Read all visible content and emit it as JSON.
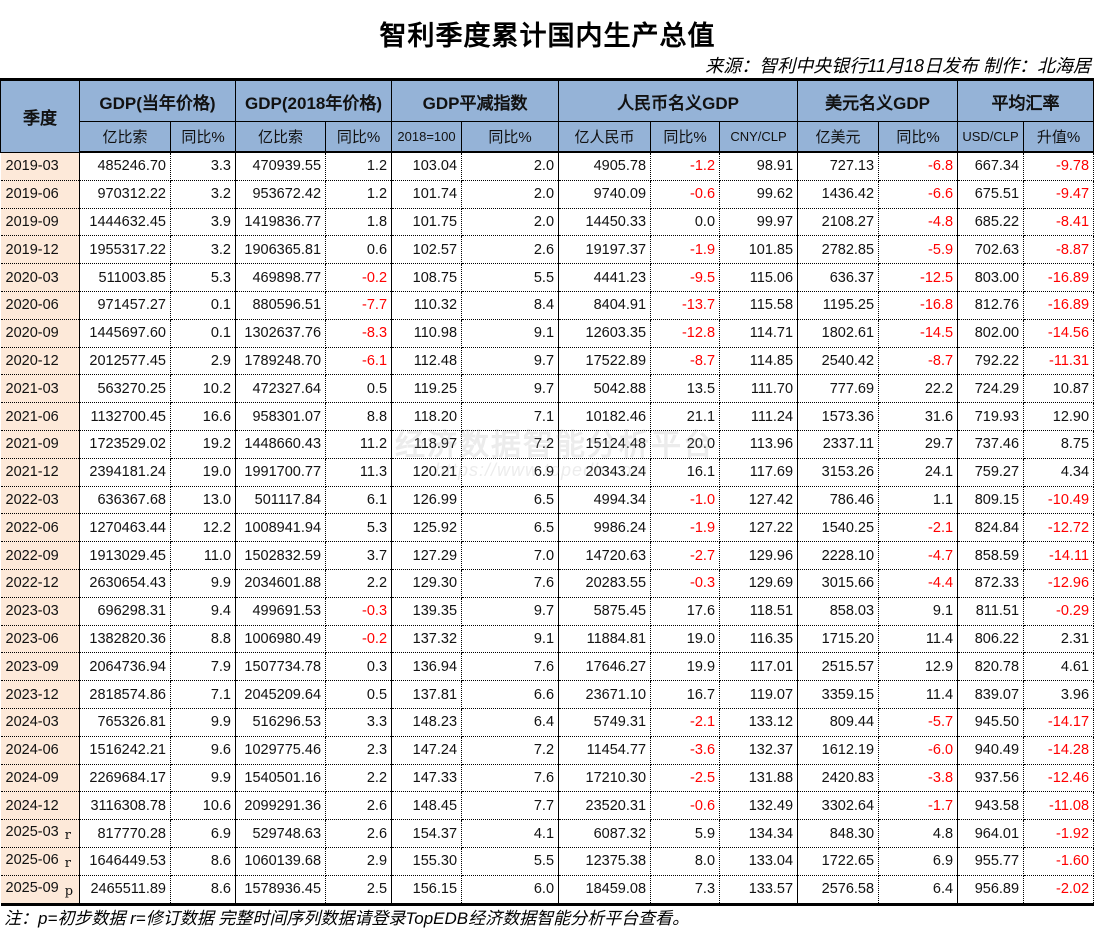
{
  "title": "智利季度累计国内生产总值",
  "source": "来源：智利中央银行11月18日发布 制作：北海居",
  "note": "注：p=初步数据 r=修订数据 完整时间序列数据请登录TopEDB经济数据智能分析平台查看。",
  "watermark": {
    "text": "经济数据智能分析平台",
    "url": "https://www.topedb.com"
  },
  "colors": {
    "header_bg": "#95b3d7",
    "quarter_bg": "#fde9d9",
    "negative": "#ff0000"
  },
  "header": {
    "quarter": "季度",
    "groups": [
      "GDP(当年价格)",
      "GDP(2018年价格)",
      "GDP平减指数",
      "人民币名义GDP",
      "美元名义GDP",
      "平均汇率"
    ],
    "subs": [
      "亿比索",
      "同比%",
      "亿比索",
      "同比%",
      "2018=100",
      "同比%",
      "亿人民币",
      "同比%",
      "CNY/CLP",
      "亿美元",
      "同比%",
      "USD/CLP",
      "升值%"
    ]
  },
  "rows": [
    {
      "q": "2019-03",
      "f": "",
      "v": [
        "485246.70",
        "3.3",
        "470939.55",
        "1.2",
        "103.04",
        "2.0",
        "4905.78",
        "-1.2",
        "98.91",
        "727.13",
        "-6.8",
        "667.34",
        "-9.78"
      ]
    },
    {
      "q": "2019-06",
      "f": "",
      "v": [
        "970312.22",
        "3.2",
        "953672.42",
        "1.2",
        "101.74",
        "2.0",
        "9740.09",
        "-0.6",
        "99.62",
        "1436.42",
        "-6.6",
        "675.51",
        "-9.47"
      ]
    },
    {
      "q": "2019-09",
      "f": "",
      "v": [
        "1444632.45",
        "3.9",
        "1419836.77",
        "1.8",
        "101.75",
        "2.0",
        "14450.33",
        "0.0",
        "99.97",
        "2108.27",
        "-4.8",
        "685.22",
        "-8.41"
      ]
    },
    {
      "q": "2019-12",
      "f": "",
      "v": [
        "1955317.22",
        "3.2",
        "1906365.81",
        "0.6",
        "102.57",
        "2.6",
        "19197.37",
        "-1.9",
        "101.85",
        "2782.85",
        "-5.9",
        "702.63",
        "-8.87"
      ]
    },
    {
      "q": "2020-03",
      "f": "",
      "v": [
        "511003.85",
        "5.3",
        "469898.77",
        "-0.2",
        "108.75",
        "5.5",
        "4441.23",
        "-9.5",
        "115.06",
        "636.37",
        "-12.5",
        "803.00",
        "-16.89"
      ]
    },
    {
      "q": "2020-06",
      "f": "",
      "v": [
        "971457.27",
        "0.1",
        "880596.51",
        "-7.7",
        "110.32",
        "8.4",
        "8404.91",
        "-13.7",
        "115.58",
        "1195.25",
        "-16.8",
        "812.76",
        "-16.89"
      ]
    },
    {
      "q": "2020-09",
      "f": "",
      "v": [
        "1445697.60",
        "0.1",
        "1302637.76",
        "-8.3",
        "110.98",
        "9.1",
        "12603.35",
        "-12.8",
        "114.71",
        "1802.61",
        "-14.5",
        "802.00",
        "-14.56"
      ]
    },
    {
      "q": "2020-12",
      "f": "",
      "v": [
        "2012577.45",
        "2.9",
        "1789248.70",
        "-6.1",
        "112.48",
        "9.7",
        "17522.89",
        "-8.7",
        "114.85",
        "2540.42",
        "-8.7",
        "792.22",
        "-11.31"
      ]
    },
    {
      "q": "2021-03",
      "f": "",
      "v": [
        "563270.25",
        "10.2",
        "472327.64",
        "0.5",
        "119.25",
        "9.7",
        "5042.88",
        "13.5",
        "111.70",
        "777.69",
        "22.2",
        "724.29",
        "10.87"
      ]
    },
    {
      "q": "2021-06",
      "f": "",
      "v": [
        "1132700.45",
        "16.6",
        "958301.07",
        "8.8",
        "118.20",
        "7.1",
        "10182.46",
        "21.1",
        "111.24",
        "1573.36",
        "31.6",
        "719.93",
        "12.90"
      ]
    },
    {
      "q": "2021-09",
      "f": "",
      "v": [
        "1723529.02",
        "19.2",
        "1448660.43",
        "11.2",
        "118.97",
        "7.2",
        "15124.48",
        "20.0",
        "113.96",
        "2337.11",
        "29.7",
        "737.46",
        "8.75"
      ]
    },
    {
      "q": "2021-12",
      "f": "",
      "v": [
        "2394181.24",
        "19.0",
        "1991700.77",
        "11.3",
        "120.21",
        "6.9",
        "20343.24",
        "16.1",
        "117.69",
        "3153.26",
        "24.1",
        "759.27",
        "4.34"
      ]
    },
    {
      "q": "2022-03",
      "f": "",
      "v": [
        "636367.68",
        "13.0",
        "501117.84",
        "6.1",
        "126.99",
        "6.5",
        "4994.34",
        "-1.0",
        "127.42",
        "786.46",
        "1.1",
        "809.15",
        "-10.49"
      ]
    },
    {
      "q": "2022-06",
      "f": "",
      "v": [
        "1270463.44",
        "12.2",
        "1008941.94",
        "5.3",
        "125.92",
        "6.5",
        "9986.24",
        "-1.9",
        "127.22",
        "1540.25",
        "-2.1",
        "824.84",
        "-12.72"
      ]
    },
    {
      "q": "2022-09",
      "f": "",
      "v": [
        "1913029.45",
        "11.0",
        "1502832.59",
        "3.7",
        "127.29",
        "7.0",
        "14720.63",
        "-2.7",
        "129.96",
        "2228.10",
        "-4.7",
        "858.59",
        "-14.11"
      ]
    },
    {
      "q": "2022-12",
      "f": "",
      "v": [
        "2630654.43",
        "9.9",
        "2034601.88",
        "2.2",
        "129.30",
        "7.6",
        "20283.55",
        "-0.3",
        "129.69",
        "3015.66",
        "-4.4",
        "872.33",
        "-12.96"
      ]
    },
    {
      "q": "2023-03",
      "f": "",
      "v": [
        "696298.31",
        "9.4",
        "499691.53",
        "-0.3",
        "139.35",
        "9.7",
        "5875.45",
        "17.6",
        "118.51",
        "858.03",
        "9.1",
        "811.51",
        "-0.29"
      ]
    },
    {
      "q": "2023-06",
      "f": "",
      "v": [
        "1382820.36",
        "8.8",
        "1006980.49",
        "-0.2",
        "137.32",
        "9.1",
        "11884.81",
        "19.0",
        "116.35",
        "1715.20",
        "11.4",
        "806.22",
        "2.31"
      ]
    },
    {
      "q": "2023-09",
      "f": "",
      "v": [
        "2064736.94",
        "7.9",
        "1507734.78",
        "0.3",
        "136.94",
        "7.6",
        "17646.27",
        "19.9",
        "117.01",
        "2515.57",
        "12.9",
        "820.78",
        "4.61"
      ]
    },
    {
      "q": "2023-12",
      "f": "",
      "v": [
        "2818574.86",
        "7.1",
        "2045209.64",
        "0.5",
        "137.81",
        "6.6",
        "23671.10",
        "16.7",
        "119.07",
        "3359.15",
        "11.4",
        "839.07",
        "3.96"
      ]
    },
    {
      "q": "2024-03",
      "f": "",
      "v": [
        "765326.81",
        "9.9",
        "516296.53",
        "3.3",
        "148.23",
        "6.4",
        "5749.31",
        "-2.1",
        "133.12",
        "809.44",
        "-5.7",
        "945.50",
        "-14.17"
      ]
    },
    {
      "q": "2024-06",
      "f": "",
      "v": [
        "1516242.21",
        "9.6",
        "1029775.46",
        "2.3",
        "147.24",
        "7.2",
        "11454.77",
        "-3.6",
        "132.37",
        "1612.19",
        "-6.0",
        "940.49",
        "-14.28"
      ]
    },
    {
      "q": "2024-09",
      "f": "",
      "v": [
        "2269684.17",
        "9.9",
        "1540501.16",
        "2.2",
        "147.33",
        "7.6",
        "17210.30",
        "-2.5",
        "131.88",
        "2420.83",
        "-3.8",
        "937.56",
        "-12.46"
      ]
    },
    {
      "q": "2024-12",
      "f": "",
      "v": [
        "3116308.78",
        "10.6",
        "2099291.36",
        "2.6",
        "148.45",
        "7.7",
        "23520.31",
        "-0.6",
        "132.49",
        "3302.64",
        "-1.7",
        "943.58",
        "-11.08"
      ]
    },
    {
      "q": "2025-03",
      "f": "r",
      "v": [
        "817770.28",
        "6.9",
        "529748.63",
        "2.6",
        "154.37",
        "4.1",
        "6087.32",
        "5.9",
        "134.34",
        "848.30",
        "4.8",
        "964.01",
        "-1.92"
      ]
    },
    {
      "q": "2025-06",
      "f": "r",
      "v": [
        "1646449.53",
        "8.6",
        "1060139.68",
        "2.9",
        "155.30",
        "5.5",
        "12375.38",
        "8.0",
        "133.04",
        "1722.65",
        "6.9",
        "955.77",
        "-1.60"
      ]
    },
    {
      "q": "2025-09",
      "f": "p",
      "v": [
        "2465511.89",
        "8.6",
        "1578936.45",
        "2.5",
        "156.15",
        "6.0",
        "18459.08",
        "7.3",
        "133.57",
        "2576.58",
        "6.4",
        "956.89",
        "-2.02"
      ]
    }
  ]
}
